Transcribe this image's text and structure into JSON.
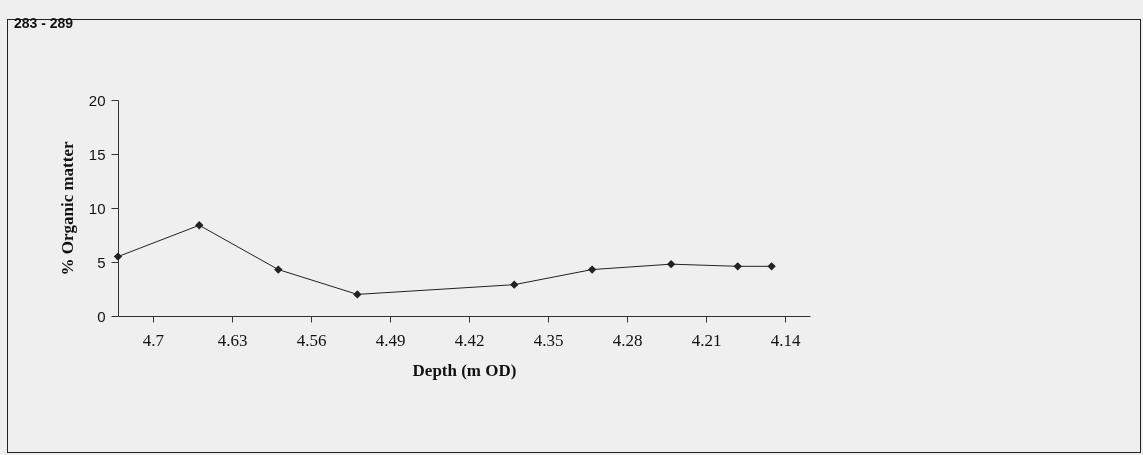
{
  "chart_data": {
    "type": "line",
    "title": "283 - 289",
    "xlabel": "Depth (m OD)",
    "ylabel": "% Organic matter",
    "x": [
      4.731,
      4.659,
      4.589,
      4.519,
      4.38,
      4.311,
      4.241,
      4.182,
      4.152
    ],
    "series": [
      {
        "color": "#222222",
        "values": [
          5.5,
          8.4,
          4.3,
          2.0,
          2.9,
          4.3,
          4.8,
          4.6,
          4.6
        ]
      }
    ],
    "xlim": [
      4.731,
      4.118
    ],
    "xticks": [
      4.7,
      4.63,
      4.56,
      4.49,
      4.42,
      4.35,
      4.28,
      4.21,
      4.14
    ],
    "ylim": [
      0,
      20
    ],
    "yticks": [
      0,
      5,
      10,
      15,
      20
    ],
    "grid": false,
    "marker": "diamond",
    "line_style": "solid"
  }
}
